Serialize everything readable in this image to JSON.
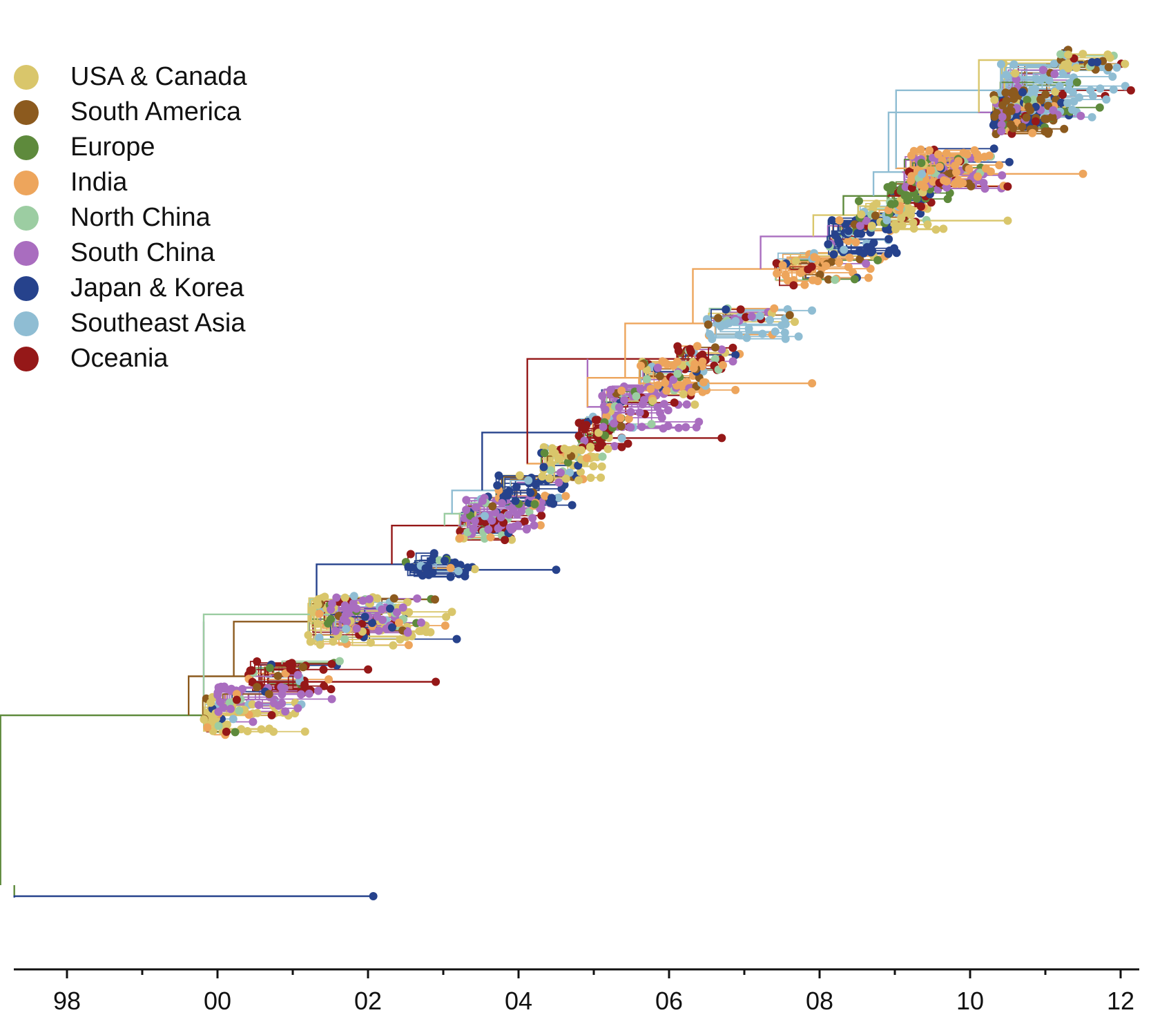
{
  "chart_data": {
    "type": "phylogenetic-tree",
    "xlabel": "",
    "ylabel": "",
    "x_ticks": [
      "98",
      "00",
      "02",
      "04",
      "06",
      "08",
      "10",
      "12"
    ],
    "x_tick_years": [
      1998,
      2000,
      2002,
      2004,
      2006,
      2008,
      2010,
      2012
    ],
    "xlim": [
      1997.3,
      2012.3
    ],
    "minor_tick_step_years": 1,
    "root_year": 1997.3,
    "latest_tip_year": 2012.25,
    "legend_position": "top-left",
    "grid": false,
    "legend": [
      {
        "label": "USA & Canada",
        "color": "#D9C66B"
      },
      {
        "label": "South America",
        "color": "#8C5A1E"
      },
      {
        "label": "Europe",
        "color": "#5E8A3C"
      },
      {
        "label": "India",
        "color": "#EDA55C"
      },
      {
        "label": "North China",
        "color": "#9CCDA2"
      },
      {
        "label": "South China",
        "color": "#A96DBF"
      },
      {
        "label": "Japan & Korea",
        "color": "#26428C"
      },
      {
        "label": "Southeast Asia",
        "color": "#8FBDD3"
      },
      {
        "label": "Oceania",
        "color": "#951818"
      }
    ],
    "clades": [
      {
        "region": "USA & Canada",
        "start": 1999.8,
        "end": 2001.2,
        "tips": 60,
        "trunk_region": "Europe"
      },
      {
        "region": "Oceania",
        "start": 2000.4,
        "end": 2002.0,
        "tips": 45,
        "trunk_region": "South America"
      },
      {
        "region": "USA & Canada",
        "start": 2001.2,
        "end": 2003.2,
        "tips": 80,
        "trunk_region": "South America"
      },
      {
        "region": "South China",
        "start": 2000.0,
        "end": 2001.6,
        "tips": 40,
        "trunk_region": "South China"
      },
      {
        "region": "South China",
        "start": 2001.5,
        "end": 2003.0,
        "tips": 55,
        "trunk_region": "North China"
      },
      {
        "region": "Japan & Korea",
        "start": 2002.5,
        "end": 2003.6,
        "tips": 35,
        "trunk_region": "Japan & Korea"
      },
      {
        "region": "Oceania",
        "start": 2003.2,
        "end": 2004.2,
        "tips": 40,
        "trunk_region": "Oceania"
      },
      {
        "region": "South China",
        "start": 2003.3,
        "end": 2004.6,
        "tips": 50,
        "trunk_region": "North China"
      },
      {
        "region": "Japan & Korea",
        "start": 2003.7,
        "end": 2005.0,
        "tips": 45,
        "trunk_region": "Southeast Asia"
      },
      {
        "region": "Oceania",
        "start": 2004.8,
        "end": 2005.8,
        "tips": 45,
        "trunk_region": "Japan & Korea"
      },
      {
        "region": "USA & Canada",
        "start": 2004.3,
        "end": 2005.2,
        "tips": 50,
        "trunk_region": "India"
      },
      {
        "region": "Oceania",
        "start": 2006.1,
        "end": 2007.0,
        "tips": 35,
        "trunk_region": "Oceania"
      },
      {
        "region": "South China",
        "start": 2005.1,
        "end": 2006.5,
        "tips": 70,
        "trunk_region": "South China"
      },
      {
        "region": "India",
        "start": 2005.6,
        "end": 2007.0,
        "tips": 50,
        "trunk_region": "India"
      },
      {
        "region": "Southeast Asia",
        "start": 2006.5,
        "end": 2008.0,
        "tips": 45,
        "trunk_region": "India"
      },
      {
        "region": "India",
        "start": 2007.4,
        "end": 2009.0,
        "tips": 50,
        "trunk_region": "India"
      },
      {
        "region": "Japan & Korea",
        "start": 2008.1,
        "end": 2009.3,
        "tips": 55,
        "trunk_region": "South China"
      },
      {
        "region": "USA & Canada",
        "start": 2008.5,
        "end": 2009.6,
        "tips": 45,
        "trunk_region": "USA & Canada"
      },
      {
        "region": "Europe",
        "start": 2008.9,
        "end": 2009.8,
        "tips": 40,
        "trunk_region": "Europe"
      },
      {
        "region": "South China",
        "start": 2009.1,
        "end": 2010.6,
        "tips": 50,
        "trunk_region": "Southeast Asia"
      },
      {
        "region": "Japan & Korea",
        "start": 2010.3,
        "end": 2011.3,
        "tips": 45,
        "trunk_region": "Southeast Asia"
      },
      {
        "region": "India",
        "start": 2009.2,
        "end": 2010.6,
        "tips": 60,
        "trunk_region": "India"
      },
      {
        "region": "Southeast Asia",
        "start": 2010.4,
        "end": 2012.2,
        "tips": 90,
        "trunk_region": "Southeast Asia"
      },
      {
        "region": "South America",
        "start": 2010.3,
        "end": 2011.3,
        "tips": 70,
        "trunk_region": "South China"
      },
      {
        "region": "USA & Canada",
        "start": 2011.2,
        "end": 2012.2,
        "tips": 25,
        "trunk_region": "USA & Canada"
      }
    ]
  }
}
